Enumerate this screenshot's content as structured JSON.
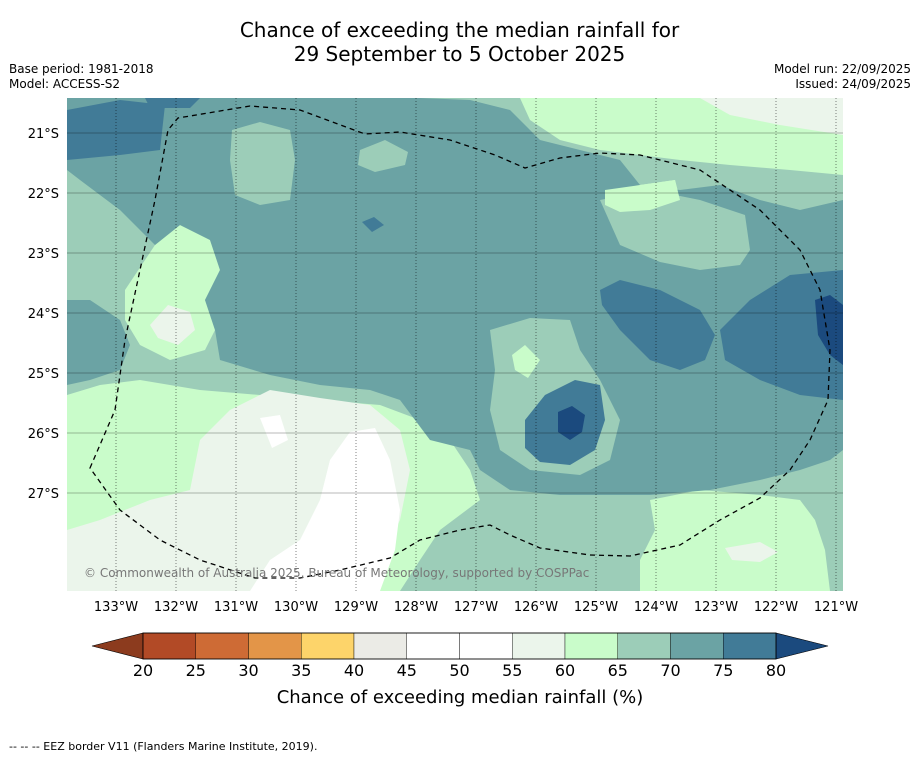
{
  "title_line1": "Chance of exceeding the median rainfall for",
  "title_line2": "29 September to 5 October 2025",
  "base_period": "Base period: 1981-2018",
  "model": "Model: ACCESS-S2",
  "model_run": "Model run: 22/09/2025",
  "issued": "Issued: 24/09/2025",
  "copyright": "© Commonwealth of Australia 2025, Bureau of Meteorology, supported by COSPPac",
  "lat_labels": [
    "21°S",
    "22°S",
    "23°S",
    "24°S",
    "25°S",
    "26°S",
    "27°S"
  ],
  "lon_labels": [
    "133°W",
    "132°W",
    "131°W",
    "130°W",
    "129°W",
    "128°W",
    "127°W",
    "126°W",
    "125°W",
    "124°W",
    "123°W",
    "122°W",
    "121°W"
  ],
  "colorbar": {
    "title": "Chance of exceeding median rainfall (%)",
    "labels": [
      "20",
      "25",
      "30",
      "35",
      "40",
      "45",
      "50",
      "55",
      "60",
      "65",
      "70",
      "75",
      "80"
    ],
    "colors": [
      "#b24a26",
      "#ce6b35",
      "#e39548",
      "#fdd46a",
      "#ebebe6",
      "#ffffff",
      "#ffffff",
      "#ebf5eb",
      "#c9fcca",
      "#9ccdb8",
      "#6ba3a4",
      "#417b97"
    ],
    "under_color": "#8c3b1e",
    "over_color": "#1b4a7e"
  },
  "footer": "-- -- -- EEZ border V11 (Flanders Marine Institute, 2019)."
}
